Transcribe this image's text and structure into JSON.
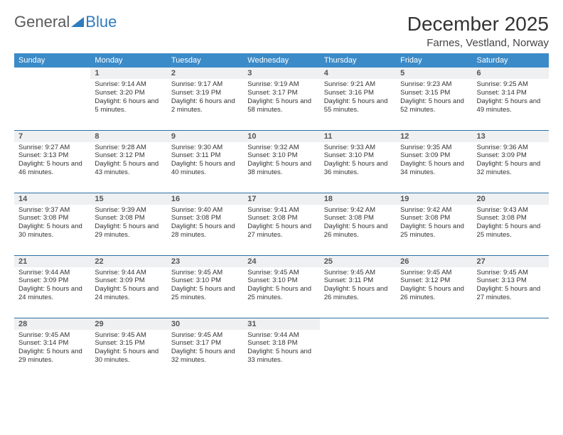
{
  "logo": {
    "text1": "General",
    "text2": "Blue"
  },
  "title": "December 2025",
  "location": "Farnes, Vestland, Norway",
  "weekdays": [
    "Sunday",
    "Monday",
    "Tuesday",
    "Wednesday",
    "Thursday",
    "Friday",
    "Saturday"
  ],
  "colors": {
    "header_bg": "#3b8bc8",
    "header_fg": "#ffffff",
    "daynum_bg": "#eef0f2",
    "row_divider": "#2f6fa3",
    "logo_gray": "#5a5a5a",
    "logo_blue": "#2f7bbf"
  },
  "weeks": [
    [
      null,
      {
        "n": "1",
        "sr": "Sunrise: 9:14 AM",
        "ss": "Sunset: 3:20 PM",
        "dl": "Daylight: 6 hours and 5 minutes."
      },
      {
        "n": "2",
        "sr": "Sunrise: 9:17 AM",
        "ss": "Sunset: 3:19 PM",
        "dl": "Daylight: 6 hours and 2 minutes."
      },
      {
        "n": "3",
        "sr": "Sunrise: 9:19 AM",
        "ss": "Sunset: 3:17 PM",
        "dl": "Daylight: 5 hours and 58 minutes."
      },
      {
        "n": "4",
        "sr": "Sunrise: 9:21 AM",
        "ss": "Sunset: 3:16 PM",
        "dl": "Daylight: 5 hours and 55 minutes."
      },
      {
        "n": "5",
        "sr": "Sunrise: 9:23 AM",
        "ss": "Sunset: 3:15 PM",
        "dl": "Daylight: 5 hours and 52 minutes."
      },
      {
        "n": "6",
        "sr": "Sunrise: 9:25 AM",
        "ss": "Sunset: 3:14 PM",
        "dl": "Daylight: 5 hours and 49 minutes."
      }
    ],
    [
      {
        "n": "7",
        "sr": "Sunrise: 9:27 AM",
        "ss": "Sunset: 3:13 PM",
        "dl": "Daylight: 5 hours and 46 minutes."
      },
      {
        "n": "8",
        "sr": "Sunrise: 9:28 AM",
        "ss": "Sunset: 3:12 PM",
        "dl": "Daylight: 5 hours and 43 minutes."
      },
      {
        "n": "9",
        "sr": "Sunrise: 9:30 AM",
        "ss": "Sunset: 3:11 PM",
        "dl": "Daylight: 5 hours and 40 minutes."
      },
      {
        "n": "10",
        "sr": "Sunrise: 9:32 AM",
        "ss": "Sunset: 3:10 PM",
        "dl": "Daylight: 5 hours and 38 minutes."
      },
      {
        "n": "11",
        "sr": "Sunrise: 9:33 AM",
        "ss": "Sunset: 3:10 PM",
        "dl": "Daylight: 5 hours and 36 minutes."
      },
      {
        "n": "12",
        "sr": "Sunrise: 9:35 AM",
        "ss": "Sunset: 3:09 PM",
        "dl": "Daylight: 5 hours and 34 minutes."
      },
      {
        "n": "13",
        "sr": "Sunrise: 9:36 AM",
        "ss": "Sunset: 3:09 PM",
        "dl": "Daylight: 5 hours and 32 minutes."
      }
    ],
    [
      {
        "n": "14",
        "sr": "Sunrise: 9:37 AM",
        "ss": "Sunset: 3:08 PM",
        "dl": "Daylight: 5 hours and 30 minutes."
      },
      {
        "n": "15",
        "sr": "Sunrise: 9:39 AM",
        "ss": "Sunset: 3:08 PM",
        "dl": "Daylight: 5 hours and 29 minutes."
      },
      {
        "n": "16",
        "sr": "Sunrise: 9:40 AM",
        "ss": "Sunset: 3:08 PM",
        "dl": "Daylight: 5 hours and 28 minutes."
      },
      {
        "n": "17",
        "sr": "Sunrise: 9:41 AM",
        "ss": "Sunset: 3:08 PM",
        "dl": "Daylight: 5 hours and 27 minutes."
      },
      {
        "n": "18",
        "sr": "Sunrise: 9:42 AM",
        "ss": "Sunset: 3:08 PM",
        "dl": "Daylight: 5 hours and 26 minutes."
      },
      {
        "n": "19",
        "sr": "Sunrise: 9:42 AM",
        "ss": "Sunset: 3:08 PM",
        "dl": "Daylight: 5 hours and 25 minutes."
      },
      {
        "n": "20",
        "sr": "Sunrise: 9:43 AM",
        "ss": "Sunset: 3:08 PM",
        "dl": "Daylight: 5 hours and 25 minutes."
      }
    ],
    [
      {
        "n": "21",
        "sr": "Sunrise: 9:44 AM",
        "ss": "Sunset: 3:09 PM",
        "dl": "Daylight: 5 hours and 24 minutes."
      },
      {
        "n": "22",
        "sr": "Sunrise: 9:44 AM",
        "ss": "Sunset: 3:09 PM",
        "dl": "Daylight: 5 hours and 24 minutes."
      },
      {
        "n": "23",
        "sr": "Sunrise: 9:45 AM",
        "ss": "Sunset: 3:10 PM",
        "dl": "Daylight: 5 hours and 25 minutes."
      },
      {
        "n": "24",
        "sr": "Sunrise: 9:45 AM",
        "ss": "Sunset: 3:10 PM",
        "dl": "Daylight: 5 hours and 25 minutes."
      },
      {
        "n": "25",
        "sr": "Sunrise: 9:45 AM",
        "ss": "Sunset: 3:11 PM",
        "dl": "Daylight: 5 hours and 26 minutes."
      },
      {
        "n": "26",
        "sr": "Sunrise: 9:45 AM",
        "ss": "Sunset: 3:12 PM",
        "dl": "Daylight: 5 hours and 26 minutes."
      },
      {
        "n": "27",
        "sr": "Sunrise: 9:45 AM",
        "ss": "Sunset: 3:13 PM",
        "dl": "Daylight: 5 hours and 27 minutes."
      }
    ],
    [
      {
        "n": "28",
        "sr": "Sunrise: 9:45 AM",
        "ss": "Sunset: 3:14 PM",
        "dl": "Daylight: 5 hours and 29 minutes."
      },
      {
        "n": "29",
        "sr": "Sunrise: 9:45 AM",
        "ss": "Sunset: 3:15 PM",
        "dl": "Daylight: 5 hours and 30 minutes."
      },
      {
        "n": "30",
        "sr": "Sunrise: 9:45 AM",
        "ss": "Sunset: 3:17 PM",
        "dl": "Daylight: 5 hours and 32 minutes."
      },
      {
        "n": "31",
        "sr": "Sunrise: 9:44 AM",
        "ss": "Sunset: 3:18 PM",
        "dl": "Daylight: 5 hours and 33 minutes."
      },
      null,
      null,
      null
    ]
  ]
}
